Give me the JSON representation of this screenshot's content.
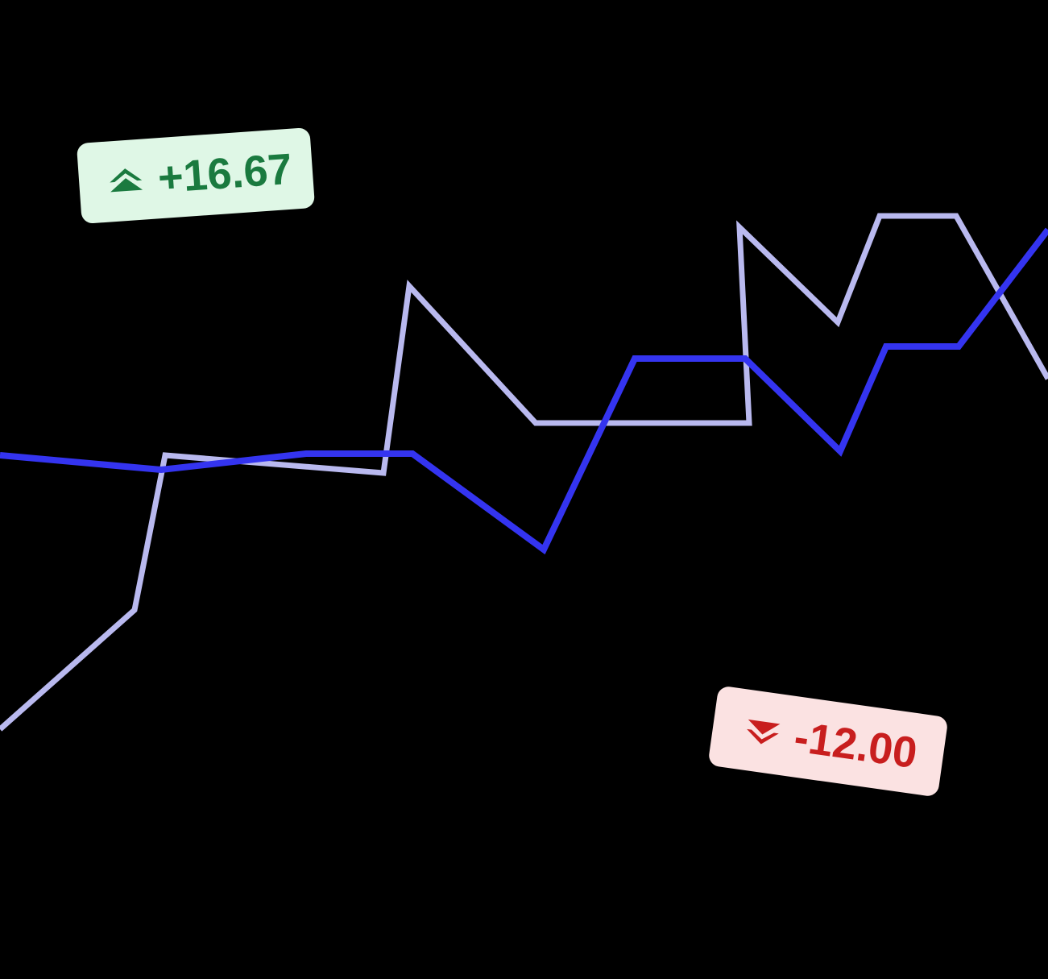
{
  "chart_data": {
    "type": "line",
    "title": "",
    "xlabel": "",
    "ylabel": "",
    "grid": false,
    "ylim": [
      0,
      1215
    ],
    "series": [
      {
        "role": "previous",
        "color": "#b9b9ef",
        "points": [
          [
            0,
            310
          ],
          [
            167,
            458
          ],
          [
            205,
            650
          ],
          [
            476,
            628
          ],
          [
            508,
            860
          ],
          [
            665,
            690
          ],
          [
            930,
            690
          ],
          [
            918,
            933
          ],
          [
            1040,
            815
          ],
          [
            1092,
            947
          ],
          [
            1187,
            947
          ],
          [
            1301,
            745
          ]
        ]
      },
      {
        "role": "current",
        "color": "#3434f0",
        "points": [
          [
            0,
            650
          ],
          [
            200,
            632
          ],
          [
            380,
            652
          ],
          [
            512,
            652
          ],
          [
            675,
            533
          ],
          [
            788,
            770
          ],
          [
            925,
            770
          ],
          [
            1043,
            655
          ],
          [
            1100,
            785
          ],
          [
            1190,
            785
          ],
          [
            1301,
            930
          ]
        ]
      }
    ]
  },
  "badges": {
    "up": {
      "value": "+16.67",
      "icon": "double-chevron-up-icon",
      "color": "#1a7a3f",
      "background": "#dff7e6"
    },
    "down": {
      "value": "-12.00",
      "icon": "double-chevron-down-icon",
      "color": "#c81e1e",
      "background": "#fbe2e2"
    }
  }
}
